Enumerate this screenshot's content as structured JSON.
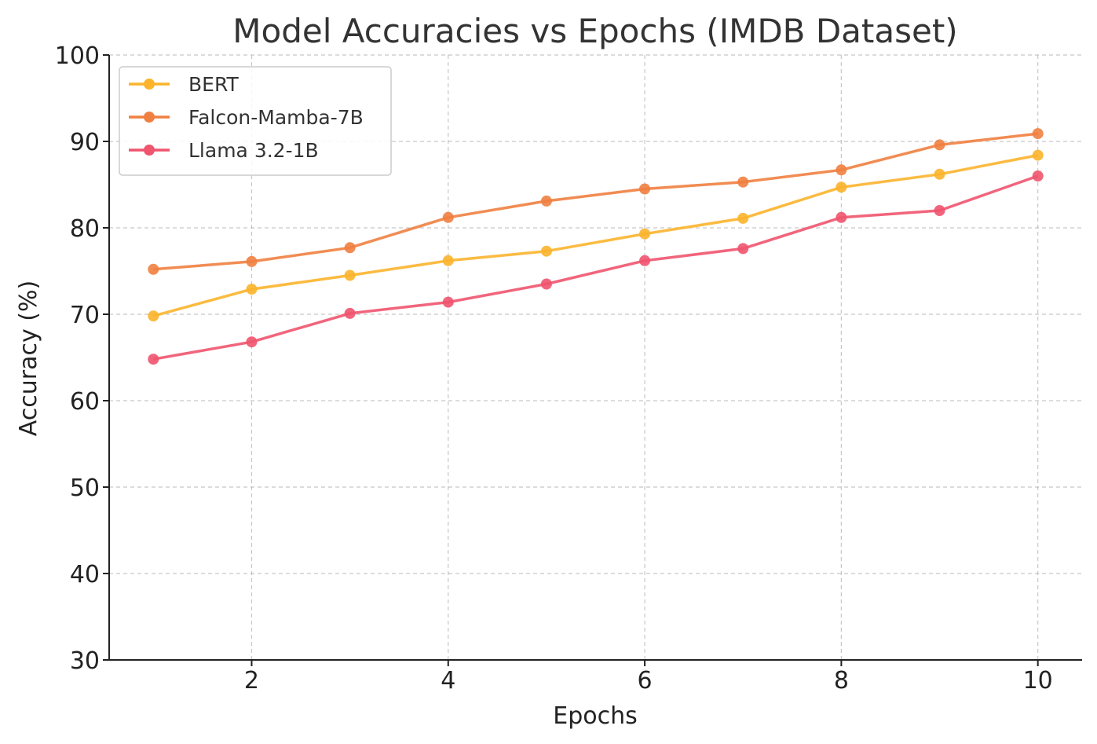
{
  "chart_data": {
    "type": "line",
    "title": "Model Accuracies vs Epochs (IMDB Dataset)",
    "xlabel": "Epochs",
    "ylabel": "Accuracy (%)",
    "x": [
      1,
      2,
      3,
      4,
      5,
      6,
      7,
      8,
      9,
      10
    ],
    "xlim": [
      0.55,
      10.45
    ],
    "ylim": [
      30,
      100
    ],
    "xticks": [
      2,
      4,
      6,
      8,
      10
    ],
    "yticks": [
      30,
      40,
      50,
      60,
      70,
      80,
      90,
      100
    ],
    "grid": true,
    "legend_position": "top-left",
    "series": [
      {
        "name": "BERT",
        "color": "#fbb42c",
        "values": [
          69.8,
          72.9,
          74.5,
          76.2,
          77.3,
          79.3,
          81.1,
          84.7,
          86.2,
          88.4
        ]
      },
      {
        "name": "Falcon-Mamba-7B",
        "color": "#f08040",
        "values": [
          75.2,
          76.1,
          77.7,
          81.2,
          83.1,
          84.5,
          85.3,
          86.7,
          89.6,
          90.9
        ]
      },
      {
        "name": "Llama 3.2-1B",
        "color": "#f0546e",
        "values": [
          64.8,
          66.8,
          70.1,
          71.4,
          73.5,
          76.2,
          77.6,
          81.2,
          82.0,
          86.0
        ]
      }
    ]
  }
}
